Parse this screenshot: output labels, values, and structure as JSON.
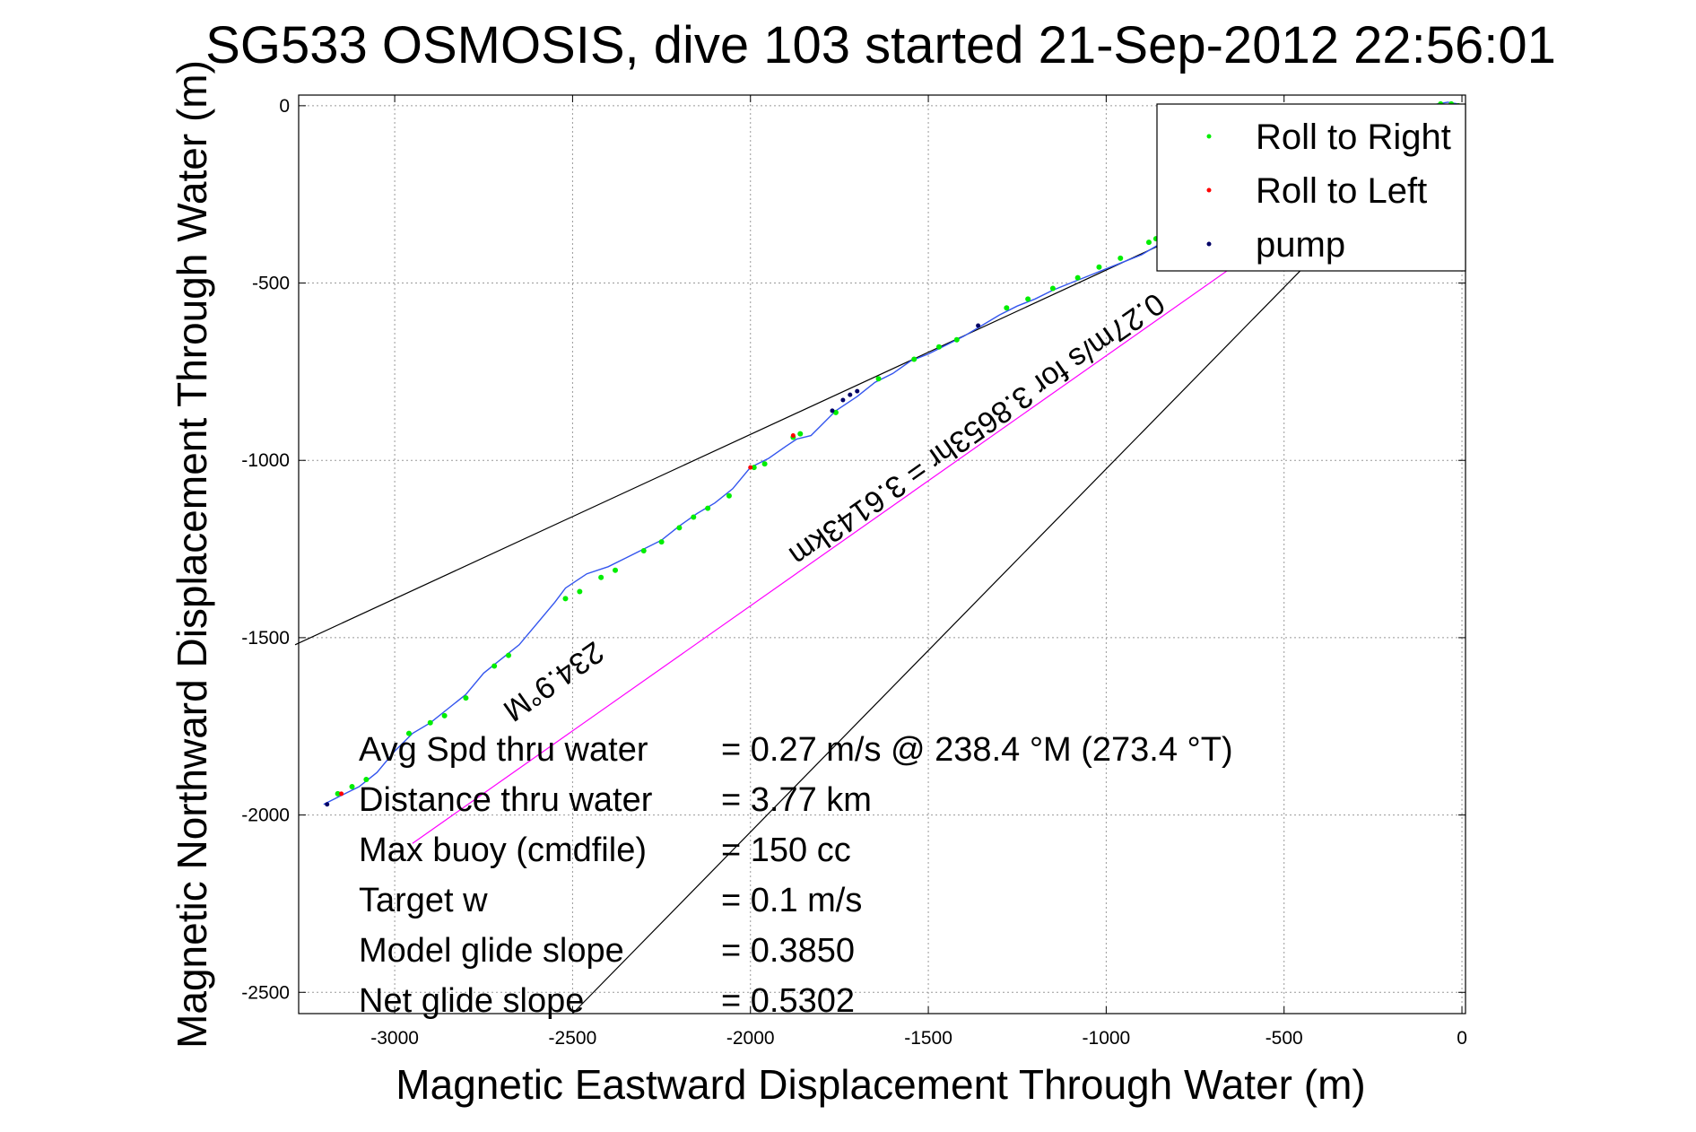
{
  "chart_data": {
    "type": "scatter",
    "title": "SG533 OSMOSIS, dive 103 started 21-Sep-2012 22:56:01",
    "xlabel": "Magnetic Eastward Displacement Through Water (m)",
    "ylabel": "Magnetic Northward Displacement Through Water (m)",
    "xlim": [
      -3270,
      10
    ],
    "ylim": [
      -2560,
      30
    ],
    "xticks": [
      -3000,
      -2500,
      -2000,
      -1500,
      -1000,
      -500,
      0
    ],
    "yticks": [
      0,
      -500,
      -1000,
      -1500,
      -2000,
      -2500
    ],
    "grid": true,
    "legend_position": "top-right",
    "legend": [
      {
        "name": "Roll to Right",
        "color": "#00ee00"
      },
      {
        "name": "Roll to Left",
        "color": "#ff0000"
      },
      {
        "name": "pump",
        "color": "#000066"
      }
    ],
    "track": {
      "color": "#3355ee",
      "x": [
        -3200,
        -3150,
        -3100,
        -3050,
        -3000,
        -2950,
        -2900,
        -2850,
        -2800,
        -2750,
        -2700,
        -2650,
        -2600,
        -2550,
        -2520,
        -2460,
        -2400,
        -2350,
        -2300,
        -2250,
        -2200,
        -2150,
        -2100,
        -2050,
        -2000,
        -1950,
        -1900,
        -1870,
        -1830,
        -1800,
        -1760,
        -1700,
        -1650,
        -1600,
        -1550,
        -1500,
        -1450,
        -1400,
        -1350,
        -1300,
        -1250,
        -1200,
        -1150,
        -1100,
        -1050,
        -1000,
        -950,
        -900,
        -850,
        -800,
        -750,
        -700,
        -650,
        -600,
        -550,
        -500,
        -450,
        -400,
        -350,
        -300,
        -250,
        -200,
        -150,
        -100,
        -70,
        -40,
        -10,
        0
      ],
      "y": [
        -1970,
        -1945,
        -1920,
        -1880,
        -1820,
        -1770,
        -1740,
        -1700,
        -1660,
        -1600,
        -1560,
        -1520,
        -1460,
        -1400,
        -1360,
        -1320,
        -1300,
        -1275,
        -1250,
        -1225,
        -1185,
        -1150,
        -1120,
        -1080,
        -1020,
        -995,
        -960,
        -940,
        -930,
        -900,
        -860,
        -820,
        -780,
        -755,
        -720,
        -700,
        -675,
        -650,
        -620,
        -590,
        -565,
        -545,
        -520,
        -500,
        -480,
        -460,
        -440,
        -420,
        -390,
        -360,
        -330,
        -300,
        -270,
        -240,
        -210,
        -180,
        -150,
        -120,
        -90,
        -70,
        -50,
        -30,
        -15,
        -5,
        5,
        10,
        5,
        0
      ]
    },
    "roll_right_x": [
      -3160,
      -3120,
      -3080,
      -2960,
      -2900,
      -2860,
      -2800,
      -2720,
      -2680,
      -2520,
      -2480,
      -2420,
      -2380,
      -2300,
      -2250,
      -2200,
      -2160,
      -2120,
      -2060,
      -1990,
      -1960,
      -1880,
      -1860,
      -1760,
      -1640,
      -1540,
      -1470,
      -1420,
      -1280,
      -1220,
      -1150,
      -1080,
      -1020,
      -960,
      -880,
      -860,
      -120,
      -80,
      -60,
      -30,
      -10
    ],
    "roll_right_y": [
      -1940,
      -1920,
      -1900,
      -1770,
      -1740,
      -1720,
      -1670,
      -1580,
      -1550,
      -1390,
      -1370,
      -1330,
      -1310,
      -1255,
      -1230,
      -1190,
      -1160,
      -1135,
      -1100,
      -1020,
      -1010,
      -935,
      -925,
      -865,
      -770,
      -715,
      -680,
      -660,
      -570,
      -545,
      -515,
      -485,
      -455,
      -430,
      -385,
      -375,
      -20,
      -5,
      5,
      5,
      0
    ],
    "roll_left_x": [
      -3150,
      -2000,
      -1880
    ],
    "roll_left_y": [
      -1940,
      -1020,
      -930
    ],
    "pump_x": [
      -1770,
      -1740,
      -1720,
      -1700,
      -1360,
      -3190
    ],
    "pump_y": [
      -860,
      -830,
      -815,
      -805,
      -620,
      -1970
    ],
    "guide_lines": [
      {
        "x": [
          -3280,
          0
        ],
        "y": [
          -1520,
          0
        ],
        "color": "#000000"
      },
      {
        "x": [
          -2500,
          0
        ],
        "y": [
          -2560,
          0
        ],
        "color": "#000000"
      },
      {
        "x": [
          -2950,
          0
        ],
        "y": [
          -2080,
          0
        ],
        "color": "#ff00ff"
      }
    ],
    "annotations": [
      {
        "text": "234.9°M",
        "x": -2570,
        "y": -1600,
        "angle": 180,
        "color": "#000000"
      },
      {
        "text": "0.27m/s for 3.8653hr = 3.6143km",
        "x": -1380,
        "y": -890,
        "angle": 180,
        "color": "#000000"
      }
    ],
    "stats": [
      {
        "label": "Avg Spd thru water",
        "value": "=  0.27 m/s @ 238.4 °M (273.4 °T)"
      },
      {
        "label": "Distance thru water",
        "value": "=  3.77 km"
      },
      {
        "label": "Max buoy (cmdfile)",
        "value": "= 150 cc"
      },
      {
        "label": "Target w",
        "value": "= 0.1 m/s"
      },
      {
        "label": "Model glide slope",
        "value": "= 0.3850"
      },
      {
        "label": "Net glide slope",
        "value": "= 0.5302"
      }
    ]
  }
}
